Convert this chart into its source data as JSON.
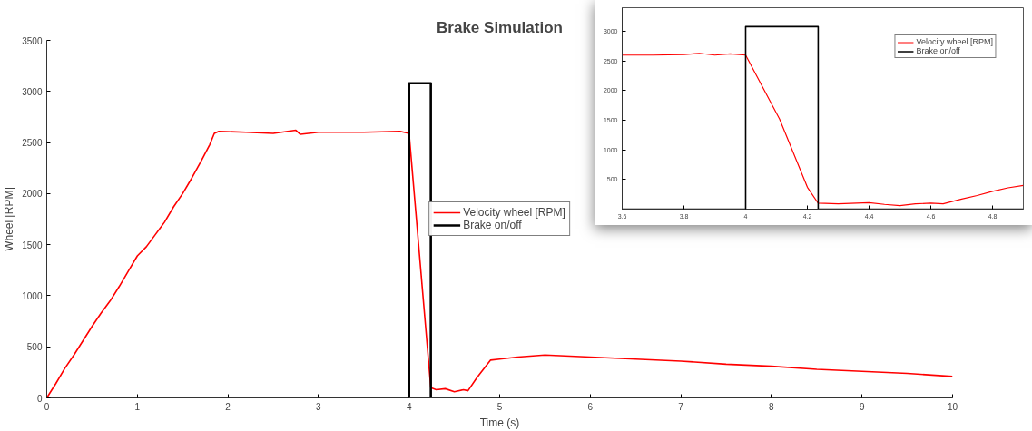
{
  "chart_data": [
    {
      "type": "line",
      "title": "Brake Simulation",
      "xlabel": "Time (s)",
      "ylabel": "Wheel [RPM]",
      "xlim": [
        0,
        10
      ],
      "ylim": [
        0,
        3500
      ],
      "xticks": [
        0,
        1,
        2,
        3,
        4,
        5,
        6,
        7,
        8,
        9,
        10
      ],
      "yticks": [
        0,
        500,
        1000,
        1500,
        2000,
        2500,
        3000,
        3500
      ],
      "grid": false,
      "legend": "center",
      "marker": "none",
      "line_style": "solid",
      "series": [
        {
          "name": "Velocity wheel [RPM]",
          "color": "#ff0000",
          "x": [
            0,
            0.1,
            0.2,
            0.3,
            0.4,
            0.5,
            0.6,
            0.7,
            0.8,
            0.9,
            1.0,
            1.1,
            1.2,
            1.3,
            1.4,
            1.5,
            1.6,
            1.7,
            1.8,
            1.85,
            1.9,
            2.2,
            2.5,
            2.75,
            2.8,
            3.0,
            3.5,
            3.9,
            4.0,
            4.24,
            4.3,
            4.4,
            4.5,
            4.6,
            4.65,
            4.75,
            4.9,
            5.0,
            5.2,
            5.5,
            6.0,
            6.5,
            7.0,
            7.5,
            8.0,
            8.5,
            9.0,
            9.5,
            10
          ],
          "values": [
            0,
            140,
            290,
            420,
            560,
            700,
            830,
            950,
            1090,
            1240,
            1390,
            1480,
            1600,
            1720,
            1870,
            2000,
            2150,
            2310,
            2480,
            2590,
            2610,
            2600,
            2590,
            2620,
            2580,
            2600,
            2600,
            2610,
            2590,
            100,
            80,
            90,
            60,
            80,
            70,
            200,
            370,
            380,
            400,
            420,
            400,
            380,
            360,
            330,
            310,
            280,
            260,
            240,
            210
          ]
        },
        {
          "name": "Brake on/off",
          "color": "#000000",
          "x": [
            0,
            4,
            4,
            4.24,
            4.24,
            10
          ],
          "values": [
            0,
            0,
            3080,
            3080,
            0,
            0
          ]
        }
      ]
    },
    {
      "type": "line",
      "xlim": [
        3.6,
        4.9
      ],
      "ylim": [
        0,
        3400
      ],
      "xticks": [
        3.6,
        3.8,
        4,
        4.2,
        4.4,
        4.6,
        4.8
      ],
      "yticks": [
        500,
        1000,
        1500,
        2000,
        2500,
        3000
      ],
      "grid": false,
      "legend": "top right",
      "marker": "none",
      "line_style": "solid",
      "series": [
        {
          "name": "Velocity wheel [RPM]",
          "color": "#ff0000",
          "x": [
            3.6,
            3.7,
            3.8,
            3.85,
            3.9,
            3.95,
            4.0,
            4.11,
            4.2,
            4.235,
            4.3,
            4.4,
            4.45,
            4.5,
            4.55,
            4.6,
            4.64,
            4.7,
            4.75,
            4.8,
            4.85,
            4.9
          ],
          "values": [
            2600,
            2600,
            2610,
            2630,
            2600,
            2620,
            2600,
            1520,
            370,
            100,
            90,
            110,
            80,
            60,
            90,
            100,
            90,
            170,
            230,
            300,
            360,
            400
          ]
        },
        {
          "name": "Brake on/off",
          "color": "#000000",
          "x": [
            3.6,
            4,
            4,
            4.235,
            4.235,
            4.9
          ],
          "values": [
            0,
            0,
            3080,
            3080,
            0,
            0
          ]
        }
      ]
    }
  ]
}
